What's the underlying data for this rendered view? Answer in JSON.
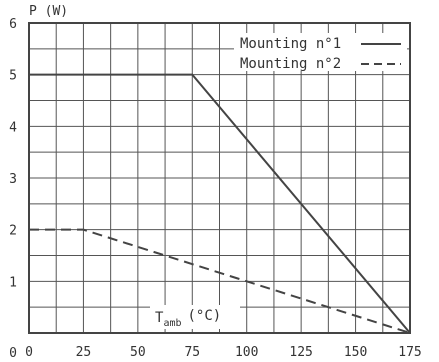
{
  "chart_data": {
    "type": "line",
    "title": "",
    "ylabel": "P (W)",
    "xlabel": {
      "main": "T",
      "sub": "amb",
      "unit": "(°C)"
    },
    "x_ticks": [
      0,
      25,
      50,
      75,
      100,
      125,
      150,
      175
    ],
    "y_ticks": [
      1,
      2,
      3,
      4,
      5,
      6
    ],
    "y_zero_label": "0",
    "xlim": [
      0,
      175
    ],
    "ylim": [
      0,
      6
    ],
    "grid": true,
    "grid_minor_x": 12.5,
    "grid_minor_y": 0.5,
    "legend_position": "top-right",
    "series": [
      {
        "name": "Mounting n°1",
        "style": "solid",
        "points": [
          [
            0,
            5
          ],
          [
            75,
            5
          ],
          [
            175,
            0
          ]
        ]
      },
      {
        "name": "Mounting n°2",
        "style": "dashed",
        "points": [
          [
            0,
            2
          ],
          [
            25,
            2
          ],
          [
            175,
            0
          ]
        ]
      }
    ],
    "colors": {
      "grid": "#555555",
      "line": "#444444",
      "text": "#333333"
    }
  }
}
